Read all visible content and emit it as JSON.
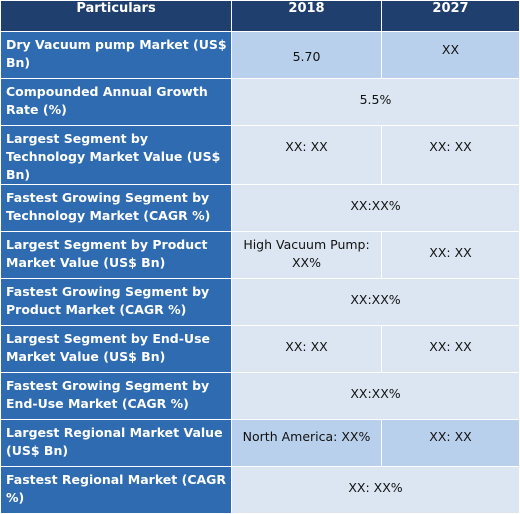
{
  "header": {
    "col1": "Particulars",
    "col2": "2018",
    "col3": "2027"
  },
  "rows": [
    {
      "label": "Dry Vacuum pump Market (US$ Bn)",
      "v2018": "5.70",
      "v2027": "XX"
    },
    {
      "label": "Compounded Annual Growth Rate (%)",
      "merged": "5.5%"
    },
    {
      "label": "Largest Segment by Technology Market Value (US$ Bn)",
      "v2018": "XX: XX",
      "v2027": "XX: XX"
    },
    {
      "label": "Fastest Growing Segment by Technology Market (CAGR %)",
      "merged": "XX:XX%"
    },
    {
      "label": "Largest Segment by Product Market Value (US$ Bn)",
      "v2018": "High Vacuum Pump: XX%",
      "v2027": "XX: XX"
    },
    {
      "label": "Fastest Growing Segment by Product Market (CAGR %)",
      "merged": "XX:XX%"
    },
    {
      "label": "Largest Segment by End-Use Market Value (US$ Bn)",
      "v2018": "XX: XX",
      "v2027": "XX: XX"
    },
    {
      "label": "Fastest Growing Segment by End-Use Market (CAGR %)",
      "merged": "XX:XX%"
    },
    {
      "label": "Largest Regional Market Value (US$ Bn)",
      "v2018": "North America: XX%",
      "v2027": "XX: XX"
    },
    {
      "label": "Fastest Regional Market (CAGR %)",
      "merged": "XX: XX%"
    }
  ]
}
